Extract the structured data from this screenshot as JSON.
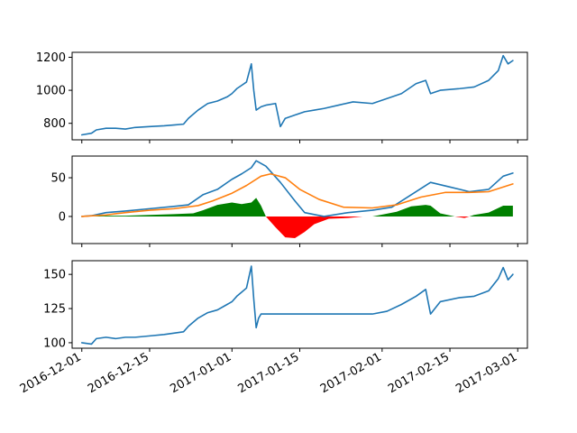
{
  "chart_data": [
    {
      "type": "line",
      "panel": "top",
      "title": "",
      "xlabel": "",
      "ylabel": "",
      "x_range": [
        "2016-11-29",
        "2017-03-03"
      ],
      "ylim": [
        700,
        1230
      ],
      "yticks": [
        800,
        1000,
        1200
      ],
      "grid": false,
      "series": [
        {
          "color": "#1f77b4",
          "x": [
            "2016-12-01",
            "2016-12-03",
            "2016-12-04",
            "2016-12-06",
            "2016-12-08",
            "2016-12-10",
            "2016-12-12",
            "2016-12-15",
            "2016-12-18",
            "2016-12-20",
            "2016-12-22",
            "2016-12-23",
            "2016-12-25",
            "2016-12-27",
            "2016-12-29",
            "2016-12-31",
            "2017-01-01",
            "2017-01-02",
            "2017-01-03",
            "2017-01-04",
            "2017-01-05",
            "2017-01-05T12:00",
            "2017-01-06",
            "2017-01-07",
            "2017-01-08",
            "2017-01-10",
            "2017-01-11",
            "2017-01-12",
            "2017-01-14",
            "2017-01-16",
            "2017-01-18",
            "2017-01-20",
            "2017-01-23",
            "2017-01-26",
            "2017-01-30",
            "2017-02-02",
            "2017-02-05",
            "2017-02-08",
            "2017-02-10",
            "2017-02-11",
            "2017-02-13",
            "2017-02-17",
            "2017-02-20",
            "2017-02-23",
            "2017-02-25",
            "2017-02-26",
            "2017-02-27",
            "2017-02-28"
          ],
          "values": [
            730,
            740,
            760,
            770,
            770,
            765,
            775,
            780,
            785,
            790,
            795,
            830,
            880,
            920,
            935,
            960,
            980,
            1010,
            1030,
            1050,
            1160,
            1000,
            880,
            900,
            910,
            920,
            780,
            830,
            850,
            870,
            880,
            890,
            910,
            930,
            920,
            950,
            980,
            1040,
            1060,
            980,
            1000,
            1010,
            1020,
            1060,
            1120,
            1210,
            1160,
            1180
          ]
        }
      ]
    },
    {
      "type": "line",
      "panel": "middle",
      "title": "",
      "xlabel": "",
      "ylabel": "",
      "x_range": [
        "2016-11-29",
        "2017-03-03"
      ],
      "ylim": [
        -35,
        78
      ],
      "yticks": [
        0,
        50
      ],
      "grid": false,
      "series": [
        {
          "color": "#1f77b4",
          "x": [
            "2016-12-01",
            "2016-12-03",
            "2016-12-06",
            "2016-12-10",
            "2016-12-15",
            "2016-12-20",
            "2016-12-23",
            "2016-12-26",
            "2016-12-29",
            "2017-01-01",
            "2017-01-03",
            "2017-01-05",
            "2017-01-06",
            "2017-01-08",
            "2017-01-11",
            "2017-01-14",
            "2017-01-16",
            "2017-01-20",
            "2017-01-25",
            "2017-01-30",
            "2017-02-03",
            "2017-02-07",
            "2017-02-11",
            "2017-02-15",
            "2017-02-19",
            "2017-02-23",
            "2017-02-26",
            "2017-02-28"
          ],
          "values": [
            0,
            1,
            5,
            7,
            10,
            13,
            15,
            28,
            35,
            48,
            55,
            63,
            72,
            65,
            44,
            20,
            5,
            0,
            5,
            8,
            12,
            28,
            44,
            38,
            32,
            35,
            52,
            56
          ]
        },
        {
          "color": "#ff7f0e",
          "x": [
            "2016-12-01",
            "2016-12-06",
            "2016-12-10",
            "2016-12-15",
            "2016-12-20",
            "2016-12-25",
            "2016-12-28",
            "2017-01-01",
            "2017-01-04",
            "2017-01-07",
            "2017-01-09",
            "2017-01-12",
            "2017-01-15",
            "2017-01-19",
            "2017-01-24",
            "2017-01-30",
            "2017-02-04",
            "2017-02-09",
            "2017-02-14",
            "2017-02-19",
            "2017-02-23",
            "2017-02-28"
          ],
          "values": [
            0,
            2,
            5,
            8,
            10,
            14,
            20,
            30,
            40,
            52,
            55,
            50,
            35,
            22,
            12,
            11,
            15,
            25,
            31,
            31,
            32,
            42
          ]
        }
      ],
      "fill_between": {
        "positive_color": "#008000",
        "negative_color": "#ff0000",
        "x": [
          "2016-12-01",
          "2016-12-03",
          "2016-12-06",
          "2016-12-10",
          "2016-12-15",
          "2016-12-20",
          "2016-12-24",
          "2016-12-26",
          "2016-12-29",
          "2017-01-01",
          "2017-01-03",
          "2017-01-05",
          "2017-01-06",
          "2017-01-07",
          "2017-01-08",
          "2017-01-10",
          "2017-01-12",
          "2017-01-14",
          "2017-01-16",
          "2017-01-18",
          "2017-01-21",
          "2017-01-25",
          "2017-01-28",
          "2017-01-30",
          "2017-02-04",
          "2017-02-07",
          "2017-02-10",
          "2017-02-11",
          "2017-02-13",
          "2017-02-16",
          "2017-02-18",
          "2017-02-20",
          "2017-02-23",
          "2017-02-26",
          "2017-02-28"
        ],
        "values": [
          0,
          0,
          1,
          1,
          2,
          3,
          4,
          8,
          15,
          18,
          16,
          18,
          24,
          14,
          0,
          -14,
          -27,
          -28,
          -20,
          -10,
          -3,
          -2,
          0,
          0,
          6,
          13,
          15,
          14,
          4,
          0,
          -2,
          2,
          5,
          14,
          14
        ]
      }
    },
    {
      "type": "line",
      "panel": "bottom",
      "title": "",
      "xlabel": "",
      "ylabel": "",
      "x_range": [
        "2016-11-29",
        "2017-03-03"
      ],
      "ylim": [
        96,
        160
      ],
      "yticks": [
        100,
        125,
        150
      ],
      "xticks": [
        "2016-12-01",
        "2016-12-15",
        "2017-01-01",
        "2017-01-15",
        "2017-02-01",
        "2017-02-15",
        "2017-03-01"
      ],
      "grid": false,
      "series": [
        {
          "color": "#1f77b4",
          "x": [
            "2016-12-01",
            "2016-12-03",
            "2016-12-04",
            "2016-12-06",
            "2016-12-08",
            "2016-12-10",
            "2016-12-12",
            "2016-12-15",
            "2016-12-18",
            "2016-12-20",
            "2016-12-22",
            "2016-12-23",
            "2016-12-25",
            "2016-12-27",
            "2016-12-29",
            "2016-12-31",
            "2017-01-01",
            "2017-01-02",
            "2017-01-03",
            "2017-01-04",
            "2017-01-05",
            "2017-01-05T12:00",
            "2017-01-06",
            "2017-01-06T12:00",
            "2017-01-07",
            "2017-01-30",
            "2017-02-02",
            "2017-02-05",
            "2017-02-08",
            "2017-02-10",
            "2017-02-11",
            "2017-02-13",
            "2017-02-17",
            "2017-02-20",
            "2017-02-23",
            "2017-02-25",
            "2017-02-26",
            "2017-02-27",
            "2017-02-28"
          ],
          "values": [
            100,
            99,
            103,
            104,
            103,
            104,
            104,
            105,
            106,
            107,
            108,
            112,
            118,
            122,
            124,
            128,
            130,
            134,
            137,
            140,
            156,
            132,
            111,
            118,
            121,
            121,
            123,
            128,
            134,
            139,
            121,
            130,
            133,
            134,
            138,
            147,
            155,
            146,
            150
          ]
        }
      ]
    }
  ]
}
